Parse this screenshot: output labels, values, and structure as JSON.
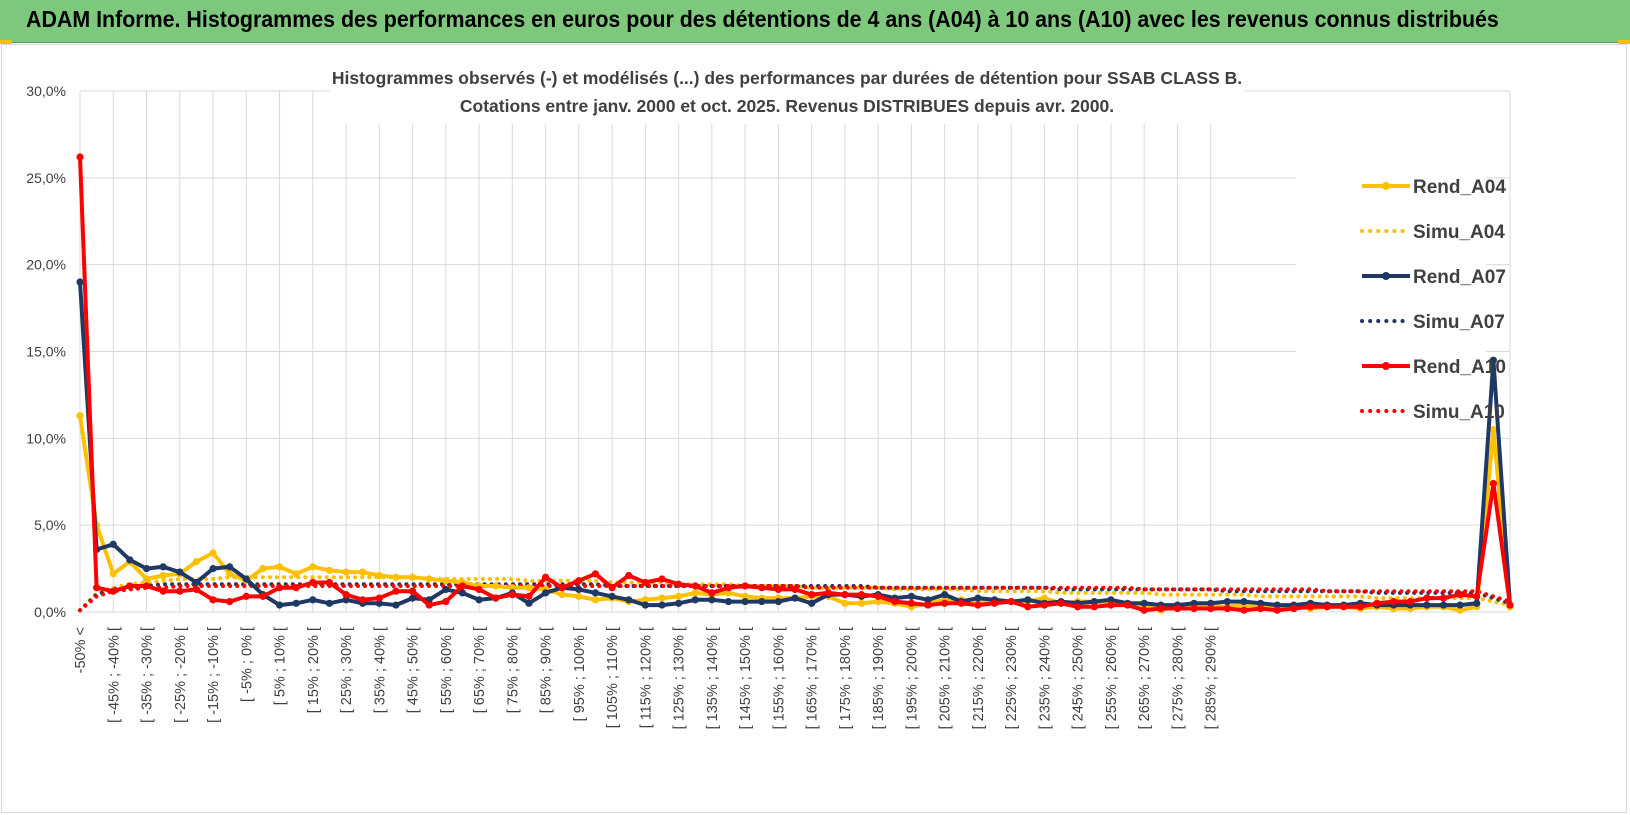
{
  "banner": {
    "title": "ADAM Informe. Histogrammes des performances en euros pour des détentions de 4 ans (A04) à 10 ans (A10) avec les revenus connus distribués"
  },
  "colors": {
    "banner": "#7ec87d",
    "A04": "#ffc000",
    "A07": "#1f3864",
    "A10": "#ff0000",
    "grid": "#d9d9d9"
  },
  "chart_data": {
    "type": "line",
    "title_line1": "Histogrammes observés (-) et modélisés (...) des performances par durées de détention pour SSAB CLASS B.",
    "title_line2": "Cotations entre janv. 2000 et oct. 2025. Revenus DISTRIBUES depuis avr. 2000.",
    "xlabel": "",
    "ylabel": "",
    "ylim": [
      0,
      0.3
    ],
    "yticks": [
      "0,0%",
      "5,0%",
      "10,0%",
      "15,0%",
      "20,0%",
      "25,0%",
      "30,0%"
    ],
    "grid": true,
    "legend_position": "right",
    "x_labels": [
      "-50% <",
      "[ -45% ; -40% [",
      "[ -35% ; -30% [",
      "[ -25% ; -20% [",
      "[ -15% ; -10% [",
      "[ -5% ; 0% [",
      "[ 5% ; 10% [",
      "[ 15% ; 20% [",
      "[ 25% ; 30% [",
      "[ 35% ; 40% [",
      "[ 45% ; 50% [",
      "[ 55% ; 60% [",
      "[ 65% ; 70% [",
      "[ 75% ; 80% [",
      "[ 85% ; 90% [",
      "[ 95% ; 100% [",
      "[ 105% ; 110% [",
      "[ 115% ; 120% [",
      "[ 125% ; 130% [",
      "[ 135% ; 140% [",
      "[ 145% ; 150% [",
      "[ 155% ; 160% [",
      "[ 165% ; 170% [",
      "[ 175% ; 180% [",
      "[ 185% ; 190% [",
      "[ 195% ; 200% [",
      "[ 205% ; 210% [",
      "[ 215% ; 220% [",
      "[ 225% ; 230% [",
      "[ 235% ; 240% [",
      "[ 245% ; 250% [",
      "[ 255% ; 260% [",
      "[ 265% ; 270% [",
      "[ 275% ; 280% [",
      "[ 285% ; 290% ["
    ],
    "series": [
      {
        "name": "Rend_A04",
        "style": "solid",
        "color": "#ffc000",
        "values": [
          0.113,
          0.05,
          0.022,
          0.029,
          0.019,
          0.021,
          0.022,
          0.029,
          0.034,
          0.022,
          0.018,
          0.025,
          0.026,
          0.022,
          0.026,
          0.024,
          0.023,
          0.023,
          0.021,
          0.02,
          0.02,
          0.019,
          0.018,
          0.017,
          0.015,
          0.015,
          0.014,
          0.014,
          0.013,
          0.01,
          0.009,
          0.007,
          0.008,
          0.006,
          0.007,
          0.008,
          0.009,
          0.011,
          0.01,
          0.011,
          0.009,
          0.008,
          0.008,
          0.008,
          0.009,
          0.009,
          0.005,
          0.005,
          0.006,
          0.005,
          0.003,
          0.005,
          0.007,
          0.007,
          0.006,
          0.007,
          0.006,
          0.006,
          0.008,
          0.005,
          0.006,
          0.006,
          0.005,
          0.004,
          0.004,
          0.001,
          0.004,
          0.004,
          0.003,
          0.003,
          0.004,
          0.004,
          0.003,
          0.003,
          0.002,
          0.003,
          0.003,
          0.002,
          0.003,
          0.002,
          0.002,
          0.003,
          0.003,
          0.001,
          0.003,
          0.105,
          0.003
        ]
      },
      {
        "name": "Simu_A04",
        "style": "dotted",
        "color": "#ffc000",
        "values": [
          0.001,
          0.011,
          0.014,
          0.016,
          0.017,
          0.018,
          0.019,
          0.019,
          0.019,
          0.02,
          0.02,
          0.02,
          0.02,
          0.02,
          0.02,
          0.02,
          0.02,
          0.02,
          0.02,
          0.02,
          0.02,
          0.019,
          0.019,
          0.019,
          0.019,
          0.019,
          0.019,
          0.018,
          0.018,
          0.018,
          0.018,
          0.018,
          0.017,
          0.017,
          0.017,
          0.017,
          0.016,
          0.016,
          0.016,
          0.016,
          0.015,
          0.015,
          0.015,
          0.015,
          0.014,
          0.014,
          0.014,
          0.014,
          0.014,
          0.013,
          0.013,
          0.013,
          0.013,
          0.013,
          0.012,
          0.012,
          0.012,
          0.012,
          0.012,
          0.011,
          0.011,
          0.011,
          0.011,
          0.011,
          0.011,
          0.01,
          0.01,
          0.01,
          0.01,
          0.01,
          0.01,
          0.009,
          0.009,
          0.009,
          0.009,
          0.009,
          0.009,
          0.009,
          0.008,
          0.008,
          0.008,
          0.008,
          0.008,
          0.008,
          0.008,
          0.006,
          0.004
        ]
      },
      {
        "name": "Rend_A07",
        "style": "solid",
        "color": "#1f3864",
        "values": [
          0.19,
          0.036,
          0.039,
          0.03,
          0.025,
          0.026,
          0.023,
          0.017,
          0.025,
          0.026,
          0.019,
          0.01,
          0.004,
          0.005,
          0.007,
          0.005,
          0.007,
          0.005,
          0.005,
          0.004,
          0.008,
          0.007,
          0.013,
          0.011,
          0.007,
          0.008,
          0.011,
          0.005,
          0.011,
          0.014,
          0.013,
          0.011,
          0.009,
          0.007,
          0.004,
          0.004,
          0.005,
          0.007,
          0.007,
          0.006,
          0.006,
          0.006,
          0.006,
          0.008,
          0.005,
          0.01,
          0.01,
          0.009,
          0.01,
          0.008,
          0.009,
          0.007,
          0.01,
          0.006,
          0.008,
          0.007,
          0.006,
          0.007,
          0.005,
          0.006,
          0.005,
          0.006,
          0.007,
          0.005,
          0.005,
          0.004,
          0.004,
          0.005,
          0.005,
          0.006,
          0.006,
          0.005,
          0.004,
          0.004,
          0.005,
          0.004,
          0.004,
          0.005,
          0.004,
          0.004,
          0.004,
          0.004,
          0.004,
          0.004,
          0.005,
          0.145,
          0.004
        ]
      },
      {
        "name": "Simu_A07",
        "style": "dotted",
        "color": "#1f3864",
        "values": [
          0.001,
          0.01,
          0.013,
          0.014,
          0.015,
          0.016,
          0.016,
          0.016,
          0.016,
          0.016,
          0.016,
          0.016,
          0.016,
          0.016,
          0.016,
          0.016,
          0.016,
          0.016,
          0.016,
          0.016,
          0.016,
          0.016,
          0.016,
          0.016,
          0.016,
          0.016,
          0.016,
          0.016,
          0.016,
          0.016,
          0.016,
          0.016,
          0.015,
          0.015,
          0.015,
          0.015,
          0.015,
          0.015,
          0.015,
          0.015,
          0.015,
          0.015,
          0.015,
          0.015,
          0.015,
          0.015,
          0.015,
          0.015,
          0.014,
          0.014,
          0.014,
          0.014,
          0.014,
          0.014,
          0.014,
          0.014,
          0.014,
          0.014,
          0.014,
          0.013,
          0.013,
          0.013,
          0.013,
          0.013,
          0.013,
          0.013,
          0.013,
          0.013,
          0.013,
          0.012,
          0.012,
          0.012,
          0.012,
          0.012,
          0.012,
          0.012,
          0.012,
          0.012,
          0.011,
          0.011,
          0.011,
          0.011,
          0.011,
          0.011,
          0.011,
          0.008,
          0.005
        ]
      },
      {
        "name": "Rend_A10",
        "style": "solid",
        "color": "#ff0000",
        "values": [
          0.262,
          0.014,
          0.012,
          0.015,
          0.015,
          0.012,
          0.012,
          0.013,
          0.007,
          0.006,
          0.009,
          0.009,
          0.014,
          0.014,
          0.017,
          0.017,
          0.01,
          0.007,
          0.008,
          0.012,
          0.012,
          0.004,
          0.006,
          0.015,
          0.013,
          0.008,
          0.01,
          0.009,
          0.02,
          0.014,
          0.018,
          0.022,
          0.014,
          0.021,
          0.017,
          0.019,
          0.016,
          0.015,
          0.011,
          0.014,
          0.015,
          0.014,
          0.013,
          0.013,
          0.01,
          0.011,
          0.01,
          0.01,
          0.009,
          0.006,
          0.005,
          0.004,
          0.005,
          0.005,
          0.004,
          0.005,
          0.006,
          0.003,
          0.004,
          0.005,
          0.003,
          0.003,
          0.004,
          0.004,
          0.001,
          0.002,
          0.002,
          0.002,
          0.002,
          0.002,
          0.001,
          0.002,
          0.001,
          0.002,
          0.003,
          0.003,
          0.003,
          0.003,
          0.005,
          0.006,
          0.006,
          0.008,
          0.008,
          0.01,
          0.009,
          0.074,
          0.004
        ]
      },
      {
        "name": "Simu_A10",
        "style": "dotted",
        "color": "#ff0000",
        "values": [
          0.001,
          0.009,
          0.012,
          0.013,
          0.014,
          0.014,
          0.015,
          0.015,
          0.015,
          0.015,
          0.015,
          0.015,
          0.015,
          0.015,
          0.015,
          0.015,
          0.015,
          0.015,
          0.015,
          0.015,
          0.015,
          0.015,
          0.015,
          0.015,
          0.015,
          0.015,
          0.015,
          0.015,
          0.015,
          0.015,
          0.015,
          0.015,
          0.015,
          0.015,
          0.015,
          0.015,
          0.015,
          0.015,
          0.015,
          0.015,
          0.015,
          0.015,
          0.015,
          0.015,
          0.014,
          0.014,
          0.014,
          0.014,
          0.014,
          0.014,
          0.014,
          0.014,
          0.014,
          0.014,
          0.014,
          0.014,
          0.014,
          0.014,
          0.014,
          0.014,
          0.014,
          0.014,
          0.014,
          0.014,
          0.013,
          0.013,
          0.013,
          0.013,
          0.013,
          0.013,
          0.013,
          0.013,
          0.013,
          0.013,
          0.013,
          0.012,
          0.012,
          0.012,
          0.012,
          0.012,
          0.012,
          0.012,
          0.012,
          0.012,
          0.012,
          0.009,
          0.006
        ]
      }
    ]
  }
}
